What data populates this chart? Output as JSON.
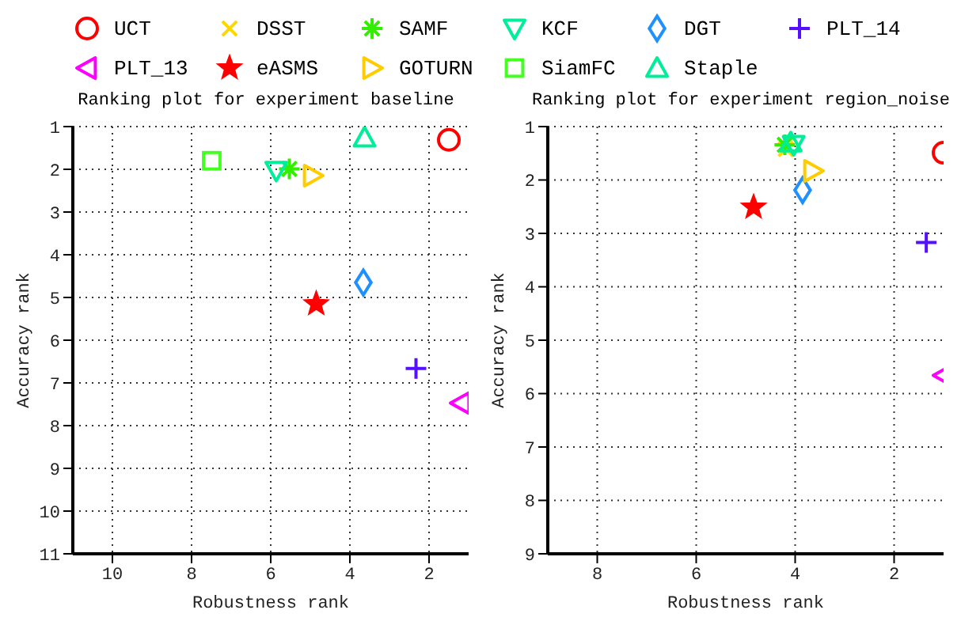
{
  "chart_data": [
    {
      "type": "scatter",
      "title": "Ranking plot for experiment baseline",
      "xlabel": "Robustness rank",
      "ylabel": "Accuracy rank",
      "xlim": [
        11,
        1
      ],
      "ylim": [
        11,
        1
      ],
      "xticks": [
        10,
        8,
        6,
        4,
        2
      ],
      "yticks": [
        1,
        2,
        3,
        4,
        5,
        6,
        7,
        8,
        9,
        10,
        11
      ],
      "grid": true,
      "legend": "top",
      "series": [
        {
          "name": "UCT",
          "color": "#ff0000",
          "marker": "circle",
          "x": [
            1.5
          ],
          "values": [
            1.31
          ]
        },
        {
          "name": "SAMF",
          "color": "#33ee00",
          "marker": "cross",
          "x": [
            5.53
          ],
          "values": [
            1.99
          ]
        },
        {
          "name": "KCF",
          "color": "#00ee99",
          "marker": "triangle-down",
          "x": [
            5.86
          ],
          "values": [
            2.03
          ]
        },
        {
          "name": "DGT",
          "color": "#1e90ff",
          "marker": "diamond",
          "x": [
            3.66
          ],
          "values": [
            4.65
          ]
        },
        {
          "name": "PLT_14",
          "color": "#5511ff",
          "marker": "plus",
          "x": [
            2.33
          ],
          "values": [
            6.66
          ]
        },
        {
          "name": "PLT_13",
          "color": "#ff00ff",
          "marker": "triangle-left",
          "x": [
            1.2
          ],
          "values": [
            7.47
          ]
        },
        {
          "name": "eASMS",
          "color": "#ff0000",
          "marker": "star",
          "x": [
            4.85
          ],
          "values": [
            5.15
          ]
        },
        {
          "name": "GOTURN",
          "color": "#ffcc00",
          "marker": "triangle-right",
          "x": [
            4.94
          ],
          "values": [
            2.15
          ]
        },
        {
          "name": "SiamFC",
          "color": "#44ff22",
          "marker": "square",
          "x": [
            7.49
          ],
          "values": [
            1.8
          ]
        },
        {
          "name": "Staple",
          "color": "#00ee99",
          "marker": "triangle",
          "x": [
            3.63
          ],
          "values": [
            1.26
          ]
        }
      ]
    },
    {
      "type": "scatter",
      "title": "Ranking plot for experiment region_noise",
      "xlabel": "Robustness rank",
      "ylabel": "Accuracy rank",
      "xlim": [
        9,
        1
      ],
      "ylim": [
        9,
        1
      ],
      "xticks": [
        8,
        6,
        4,
        2
      ],
      "yticks": [
        1,
        2,
        3,
        4,
        5,
        6,
        7,
        8,
        9
      ],
      "grid": true,
      "legend": "top",
      "series": [
        {
          "name": "UCT",
          "color": "#ff0000",
          "marker": "circle",
          "x": [
            1.0
          ],
          "values": [
            1.49
          ]
        },
        {
          "name": "DSST",
          "color": "#ffd700",
          "marker": "x",
          "x": [
            4.19
          ],
          "values": [
            1.42
          ]
        },
        {
          "name": "SAMF",
          "color": "#33ee00",
          "marker": "cross",
          "x": [
            4.21
          ],
          "values": [
            1.34
          ]
        },
        {
          "name": "KCF",
          "color": "#00ee99",
          "marker": "triangle-down",
          "x": [
            4.03
          ],
          "values": [
            1.34
          ]
        },
        {
          "name": "DGT",
          "color": "#1e90ff",
          "marker": "diamond",
          "x": [
            3.85
          ],
          "values": [
            2.19
          ]
        },
        {
          "name": "PLT_14",
          "color": "#5511ff",
          "marker": "plus",
          "x": [
            1.35
          ],
          "values": [
            3.17
          ]
        },
        {
          "name": "PLT_13",
          "color": "#ff00ff",
          "marker": "triangle-left",
          "x": [
            1.0
          ],
          "values": [
            5.66
          ]
        },
        {
          "name": "eASMS",
          "color": "#ff0000",
          "marker": "star",
          "x": [
            4.84
          ],
          "values": [
            2.51
          ]
        },
        {
          "name": "GOTURN",
          "color": "#ffcc00",
          "marker": "triangle-right",
          "x": [
            3.64
          ],
          "values": [
            1.83
          ]
        },
        {
          "name": "Staple",
          "color": "#00ee99",
          "marker": "triangle",
          "x": [
            4.09
          ],
          "values": [
            1.3
          ]
        }
      ]
    }
  ]
}
